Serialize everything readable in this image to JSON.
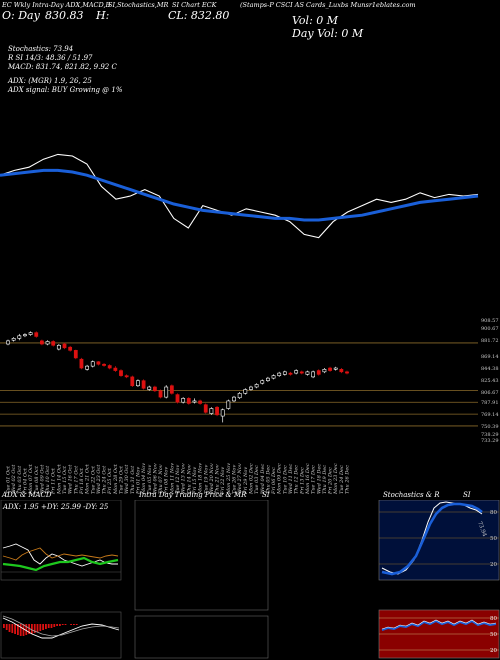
{
  "header": {
    "title_left": "EC Wkly Intra-Day ADX,MACD,B",
    "title_mid": "SI,Stochastics,MR",
    "title_right": "SI Chart ECK",
    "title_source": "(Stamps-P CSCI AS Cards_Luxbs Munsr1eblates.com",
    "open_label": "O: Day",
    "open_value": "830.83",
    "hl_label": "H:",
    "close_label": "CL: 832.80",
    "vol_label": "Vol: 0  M",
    "day_vol_label": "Day Vol: 0   M"
  },
  "indicators": {
    "line1": "Stochastics: 73.94",
    "line2": "R                        SI 14/3: 48.36  /  51.97",
    "line3": "MACD: 831.74,  821.82,  9.92  C",
    "line4": "ADX:                        (MGR) 1.9,  26,  25",
    "line5": "ADX  signal:                       BUY Growing @ 1%"
  },
  "panels": {
    "adx_title": "ADX  & MACD",
    "adx_values": "ADX: 1.95  +DY: 25.99  -DY: 25",
    "intraday_title": "Intra  Day Trading Price  & MR",
    "intraday_suffix": "SI",
    "stoch_title": "Stochastics & R",
    "stoch_suffix": "SI",
    "stoch_value": "73.94",
    "stoch_levels": [
      "80",
      "50",
      "20"
    ],
    "rsi_levels": [
      "80",
      "50",
      "20"
    ]
  },
  "colors": {
    "up": "#ffffff",
    "down": "#dd1111",
    "ema": "#1a5fd8",
    "price": "#ffffff",
    "level_line": "#8a6a2a",
    "stoch_bg": "#00103a",
    "rsi_bg": "#8a0000"
  },
  "chart_data": [
    {
      "type": "line",
      "name": "price-overview",
      "series": [
        {
          "name": "",
          "values": [
            845,
            848,
            850,
            855,
            858,
            857,
            852,
            838,
            830,
            832,
            836,
            832,
            818,
            812,
            826,
            823,
            820,
            824,
            822,
            820,
            816,
            808,
            806,
            816,
            822,
            826,
            830,
            828,
            830,
            834,
            831,
            833,
            832,
            833
          ]
        },
        {
          "name": "",
          "values": [
            845,
            846,
            847,
            848,
            848,
            847,
            845,
            842,
            839,
            836,
            833,
            830,
            827,
            825,
            823,
            822,
            821,
            820,
            819,
            818,
            818,
            817,
            817,
            818,
            819,
            820,
            822,
            824,
            826,
            828,
            829,
            830,
            831,
            832
          ]
        }
      ]
    },
    {
      "type": "bar",
      "name": "daily-candles",
      "categories": [
        "Tue 01 Oct",
        "Wed 02 Oct",
        "Thu 03 Oct",
        "Fri 04 Oct",
        "Mon 07 Oct",
        "Tue 08 Oct",
        "Wed 09 Oct",
        "Thu 10 Oct",
        "Fri 11 Oct",
        "Mon 14 Oct",
        "Tue 15 Oct",
        "Wed 16 Oct",
        "Thu 17 Oct",
        "Fri 18 Oct",
        "Mon 21 Oct",
        "Tue 22 Oct",
        "Wed 23 Oct",
        "Thu 24 Oct",
        "Fri 25 Oct",
        "Mon 28 Oct",
        "Tue 29 Oct",
        "Wed 30 Oct",
        "Thu 31 Oct",
        "Fri 01 Nov",
        "Mon 04 Nov",
        "Tue 05 Nov",
        "Wed 06 Nov",
        "Thu 07 Nov",
        "Fri 08 Nov",
        "Mon 11 Nov",
        "Tue 12 Nov",
        "Wed 13 Nov",
        "Thu 14 Nov",
        "Fri 15 Nov",
        "Mon 18 Nov",
        "Tue 19 Nov",
        "Wed 20 Nov",
        "Thu 21 Nov",
        "Fri 22 Nov",
        "Mon 25 Nov",
        "Tue 26 Nov",
        "Wed 27 Nov",
        "Fri 29 Nov",
        "Mon 02 Dec",
        "Tue 03 Dec",
        "Wed 04 Dec",
        "Thu 05 Dec",
        "Fri 06 Dec",
        "Mon 09 Dec",
        "Tue 10 Dec",
        "Wed 11 Dec",
        "Thu 12 Dec",
        "Fri 13 Dec",
        "Mon 16 Dec",
        "Tue 17 Dec",
        "Wed 18 Dec",
        "Thu 19 Dec",
        "Fri 20 Dec",
        "Mon 23 Dec",
        "Tue 24 Dec",
        "Thu 26 Dec"
      ],
      "y_ticks": [
        "908.57",
        "900.67",
        "881.72",
        "869.14",
        "844.38",
        "825.43",
        "806.67",
        "787.91",
        "769.14",
        "750.39",
        "738.29",
        "733.29"
      ],
      "ylim": [
        725,
        918
      ],
      "open": [
        880,
        886,
        889,
        893,
        895,
        898,
        885,
        880,
        884,
        872,
        880,
        875,
        870,
        856,
        840,
        845,
        852,
        848,
        846,
        842,
        838,
        830,
        828,
        814,
        822,
        808,
        812,
        806,
        796,
        814,
        800,
        788,
        794,
        788,
        790,
        784,
        770,
        780,
        766,
        778,
        790,
        795,
        802,
        808,
        812,
        818,
        822,
        826,
        830,
        832,
        834,
        834,
        836,
        832,
        828,
        838,
        836,
        842,
        840,
        840,
        836
      ],
      "close": [
        885,
        889,
        893,
        895,
        898,
        892,
        880,
        884,
        878,
        878,
        874,
        870,
        858,
        842,
        845,
        852,
        848,
        846,
        842,
        838,
        830,
        828,
        814,
        822,
        810,
        812,
        806,
        796,
        812,
        802,
        788,
        794,
        786,
        790,
        786,
        772,
        778,
        768,
        776,
        790,
        796,
        802,
        808,
        812,
        816,
        822,
        826,
        830,
        834,
        836,
        832,
        838,
        834,
        836,
        836,
        832,
        840,
        838,
        842,
        836,
        834
      ],
      "high": [
        887,
        891,
        896,
        897,
        900,
        900,
        887,
        886,
        886,
        880,
        882,
        877,
        871,
        858,
        847,
        854,
        853,
        850,
        848,
        845,
        840,
        832,
        830,
        824,
        824,
        814,
        814,
        808,
        815,
        816,
        802,
        796,
        796,
        794,
        792,
        786,
        780,
        782,
        778,
        792,
        798,
        804,
        810,
        814,
        818,
        824,
        828,
        832,
        836,
        838,
        836,
        840,
        838,
        838,
        838,
        840,
        842,
        844,
        844,
        842,
        838
      ],
      "low": [
        878,
        884,
        886,
        891,
        893,
        890,
        878,
        878,
        876,
        870,
        872,
        868,
        856,
        840,
        838,
        843,
        846,
        844,
        840,
        836,
        828,
        826,
        812,
        812,
        808,
        806,
        804,
        794,
        794,
        800,
        786,
        786,
        784,
        786,
        784,
        770,
        768,
        766,
        756,
        776,
        788,
        793,
        800,
        806,
        810,
        816,
        820,
        824,
        828,
        830,
        830,
        832,
        832,
        830,
        826,
        830,
        834,
        836,
        838,
        834,
        832
      ]
    }
  ]
}
